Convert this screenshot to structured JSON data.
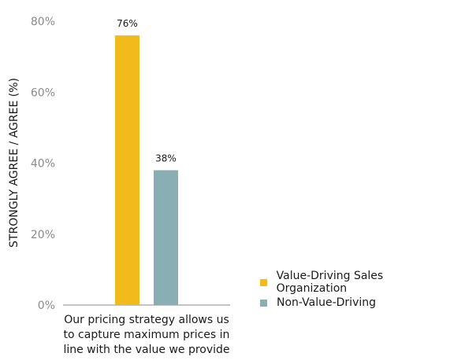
{
  "chart_data": {
    "type": "bar",
    "ylabel": "STRONGLY AGREE / AGREE (%)",
    "ylim": [
      0,
      80
    ],
    "yticks": [
      0,
      20,
      40,
      60,
      80
    ],
    "ytick_labels": [
      "0%",
      "20%",
      "40%",
      "60%",
      "80%"
    ],
    "grid": false,
    "legend_position": "right",
    "categories": [
      "Our pricing strategy allows us to capture maximum prices in line with the value we provide"
    ],
    "category_label_lines": [
      "Our pricing strategy allows us",
      "to capture maximum prices in",
      "line with the value we provide"
    ],
    "series": [
      {
        "name": "Value-Driving Sales Organization",
        "values": [
          76
        ],
        "labels": [
          "76%"
        ],
        "color": "#F3BA1B"
      },
      {
        "name": "Non-Value-Driving",
        "values": [
          38
        ],
        "labels": [
          "38%"
        ],
        "color": "#89AFB4"
      }
    ]
  }
}
